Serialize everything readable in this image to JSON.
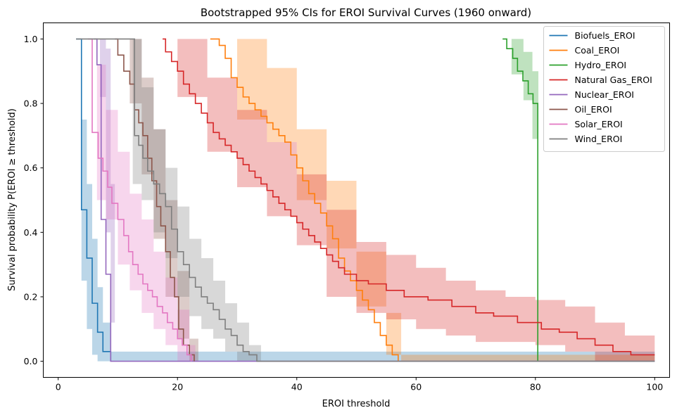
{
  "chart_data": {
    "type": "line",
    "subtype": "step-survival-with-ci-bands",
    "title": "Bootstrapped 95% CIs for EROI Survival Curves (1960 onward)",
    "xlabel": "EROI threshold",
    "ylabel": "Survival probability P(EROI ≥ threshold)",
    "xlim": [
      -2.5,
      102.5
    ],
    "ylim": [
      -0.05,
      1.05
    ],
    "xticks": [
      0,
      20,
      40,
      60,
      80,
      100
    ],
    "yticks": [
      0.0,
      0.2,
      0.4,
      0.6,
      0.8,
      1.0
    ],
    "xtick_labels": [
      "0",
      "20",
      "40",
      "60",
      "80",
      "100"
    ],
    "ytick_labels": [
      "0.0",
      "0.2",
      "0.4",
      "0.6",
      "0.8",
      "1.0"
    ],
    "grid": false,
    "legend_position": "top-right",
    "series": [
      {
        "name": "Biofuels_EROI",
        "color": "#1f77b4",
        "x": [
          3,
          3.9,
          4.8,
          5.7,
          6.6,
          7.5,
          8.8
        ],
        "y": [
          1.0,
          0.47,
          0.32,
          0.18,
          0.09,
          0.03,
          0.0
        ],
        "ci_x": [
          3,
          3.9,
          4.8,
          5.7,
          6.6,
          7.5,
          8.8,
          100
        ],
        "ci_lower": [
          1.0,
          0.25,
          0.1,
          0.02,
          0.0,
          0.0,
          0.0,
          0.0
        ],
        "ci_upper": [
          1.0,
          0.75,
          0.55,
          0.38,
          0.23,
          0.12,
          0.03,
          0.0
        ]
      },
      {
        "name": "Coal_EROI",
        "color": "#ff7f0e",
        "x": [
          25.5,
          27.0,
          28.0,
          29.0,
          30.0,
          31.0,
          32.0,
          33.0,
          34.0,
          35.0,
          36.0,
          37.0,
          38.0,
          39.0,
          40.0,
          41.0,
          42.0,
          43.0,
          44.0,
          45.0,
          46.0,
          47.0,
          48.0,
          49.0,
          50.0,
          51.0,
          52.0,
          53.0,
          54.0,
          55.0,
          56.0,
          57.0
        ],
        "y": [
          1.0,
          0.98,
          0.94,
          0.88,
          0.85,
          0.82,
          0.8,
          0.78,
          0.76,
          0.74,
          0.72,
          0.7,
          0.68,
          0.64,
          0.6,
          0.56,
          0.52,
          0.49,
          0.46,
          0.42,
          0.38,
          0.32,
          0.28,
          0.25,
          0.22,
          0.19,
          0.16,
          0.12,
          0.08,
          0.05,
          0.02,
          0.0
        ],
        "ci_x": [
          25.5,
          30,
          35,
          40,
          45,
          50,
          55,
          57.5,
          100
        ],
        "ci_lower": [
          1.0,
          0.75,
          0.68,
          0.5,
          0.35,
          0.17,
          0.02,
          0.0,
          0.0
        ],
        "ci_upper": [
          1.0,
          1.0,
          0.91,
          0.72,
          0.56,
          0.34,
          0.15,
          0.02,
          0.0
        ]
      },
      {
        "name": "Hydro_EROI",
        "color": "#2ca02c",
        "x": [
          74.5,
          75.2,
          76.2,
          77.0,
          77.9,
          78.8,
          79.6,
          80.4
        ],
        "y": [
          1.0,
          0.97,
          0.94,
          0.9,
          0.87,
          0.83,
          0.8,
          0.0
        ],
        "ci_x": [
          74.5,
          76,
          78,
          79.5,
          80.5,
          100
        ],
        "ci_lower": [
          1.0,
          0.89,
          0.81,
          0.69,
          0.0,
          0.0
        ],
        "ci_upper": [
          1.0,
          1.0,
          0.96,
          0.9,
          0.0,
          0.0
        ]
      },
      {
        "name": "Natural Gas_EROI",
        "color": "#d62728",
        "x": [
          17.5,
          18.0,
          19.0,
          20.0,
          21.0,
          22.0,
          23.0,
          24.0,
          25.0,
          26.0,
          27.0,
          28.0,
          29.0,
          30.0,
          31.0,
          32.0,
          33.0,
          34.0,
          35.0,
          36.0,
          37.0,
          38.0,
          39.0,
          40.0,
          41.0,
          42.0,
          43.0,
          44.0,
          45.0,
          46.0,
          47.0,
          48.0,
          50.0,
          52.0,
          55.0,
          58.0,
          62.0,
          66.0,
          70.0,
          73.0,
          77.0,
          81.0,
          84.0,
          87.0,
          90.0,
          93.0,
          96.0,
          98.0,
          100.0
        ],
        "y": [
          1.0,
          0.96,
          0.93,
          0.9,
          0.86,
          0.83,
          0.8,
          0.77,
          0.74,
          0.71,
          0.69,
          0.67,
          0.65,
          0.63,
          0.61,
          0.59,
          0.57,
          0.55,
          0.53,
          0.51,
          0.49,
          0.47,
          0.45,
          0.43,
          0.41,
          0.39,
          0.37,
          0.35,
          0.33,
          0.31,
          0.29,
          0.27,
          0.25,
          0.24,
          0.22,
          0.2,
          0.19,
          0.17,
          0.15,
          0.14,
          0.12,
          0.1,
          0.09,
          0.07,
          0.05,
          0.03,
          0.02,
          0.02,
          0.02
        ],
        "ci_x": [
          17.5,
          20,
          25,
          30,
          35,
          40,
          45,
          50,
          55,
          60,
          65,
          70,
          75,
          80,
          85,
          90,
          95,
          100
        ],
        "ci_lower": [
          1.0,
          0.82,
          0.65,
          0.54,
          0.45,
          0.36,
          0.2,
          0.15,
          0.13,
          0.1,
          0.08,
          0.06,
          0.06,
          0.05,
          0.03,
          0.0,
          0.0,
          0.0
        ],
        "ci_upper": [
          1.0,
          1.0,
          0.88,
          0.78,
          0.68,
          0.58,
          0.47,
          0.37,
          0.33,
          0.29,
          0.25,
          0.22,
          0.2,
          0.19,
          0.17,
          0.12,
          0.08,
          0.05
        ]
      },
      {
        "name": "Nuclear_EROI",
        "color": "#9467bd",
        "x": [
          6.0,
          6.5,
          7.2,
          8.0,
          8.8,
          100
        ],
        "y": [
          1.0,
          0.92,
          0.44,
          0.27,
          0.0,
          0.0
        ],
        "ci_x": [
          6.0,
          7.0,
          8.0,
          8.8,
          9.5,
          100
        ],
        "ci_lower": [
          1.0,
          0.82,
          0.4,
          0.12,
          0.0,
          0.0
        ],
        "ci_upper": [
          1.0,
          1.0,
          0.97,
          0.55,
          0.0,
          0.0
        ]
      },
      {
        "name": "Oil_EROI",
        "color": "#8c564b",
        "x": [
          9.5,
          10.0,
          11.0,
          12.0,
          12.8,
          13.5,
          14.2,
          15.0,
          15.7,
          16.5,
          17.2,
          18.0,
          18.8,
          19.5,
          20.2,
          21.0,
          22.0,
          22.8
        ],
        "y": [
          1.0,
          0.95,
          0.9,
          0.86,
          0.78,
          0.74,
          0.7,
          0.63,
          0.56,
          0.48,
          0.42,
          0.34,
          0.26,
          0.2,
          0.1,
          0.05,
          0.02,
          0.0
        ],
        "ci_x": [
          9.5,
          12,
          14,
          16,
          18,
          20,
          22,
          23.5,
          100
        ],
        "ci_lower": [
          1.0,
          0.8,
          0.58,
          0.38,
          0.2,
          0.07,
          0.0,
          0.0,
          0.0
        ],
        "ci_upper": [
          1.0,
          1.0,
          0.88,
          0.72,
          0.5,
          0.28,
          0.07,
          0.0,
          0.0
        ]
      },
      {
        "name": "Solar_EROI",
        "color": "#e377c2",
        "x": [
          5.0,
          5.7,
          6.7,
          7.5,
          8.3,
          9.0,
          10.0,
          11.0,
          11.8,
          12.5,
          13.4,
          14.2,
          15.0,
          15.8,
          16.6,
          17.5,
          18.3,
          19.2,
          20.0,
          20.8,
          21.6,
          22.3
        ],
        "y": [
          1.0,
          0.71,
          0.63,
          0.59,
          0.54,
          0.49,
          0.44,
          0.39,
          0.34,
          0.3,
          0.27,
          0.24,
          0.22,
          0.2,
          0.17,
          0.15,
          0.12,
          0.1,
          0.07,
          0.05,
          0.02,
          0.0
        ],
        "ci_x": [
          5,
          6.5,
          8,
          10,
          12,
          14,
          16,
          18,
          20,
          22,
          23,
          100
        ],
        "ci_lower": [
          1.0,
          0.5,
          0.44,
          0.3,
          0.22,
          0.15,
          0.1,
          0.05,
          0.0,
          0.0,
          0.0,
          0.0
        ],
        "ci_upper": [
          1.0,
          0.92,
          0.78,
          0.65,
          0.52,
          0.44,
          0.34,
          0.26,
          0.16,
          0.05,
          0.0,
          0.0
        ]
      },
      {
        "name": "Wind_EROI",
        "color": "#7f7f7f",
        "x": [
          3.0,
          12.8,
          13.5,
          14.2,
          15.0,
          16.0,
          17.0,
          18.0,
          19.0,
          20.0,
          21.0,
          22.0,
          23.0,
          24.0,
          25.0,
          26.0,
          27.0,
          28.0,
          29.0,
          30.0,
          31.0,
          32.0,
          33.3,
          100
        ],
        "y": [
          1.0,
          0.7,
          0.67,
          0.63,
          0.59,
          0.55,
          0.52,
          0.48,
          0.41,
          0.34,
          0.3,
          0.26,
          0.23,
          0.2,
          0.18,
          0.16,
          0.13,
          0.1,
          0.08,
          0.05,
          0.03,
          0.02,
          0.0,
          0.0
        ],
        "ci_x": [
          12.5,
          14,
          16,
          18,
          20,
          22,
          24,
          26,
          28,
          30,
          32,
          34,
          100
        ],
        "ci_lower": [
          0.55,
          0.5,
          0.4,
          0.32,
          0.2,
          0.14,
          0.1,
          0.07,
          0.03,
          0.0,
          0.0,
          0.0,
          0.0
        ],
        "ci_upper": [
          1.0,
          0.85,
          0.72,
          0.6,
          0.48,
          0.38,
          0.32,
          0.25,
          0.18,
          0.12,
          0.05,
          0.0,
          0.0
        ]
      }
    ]
  }
}
